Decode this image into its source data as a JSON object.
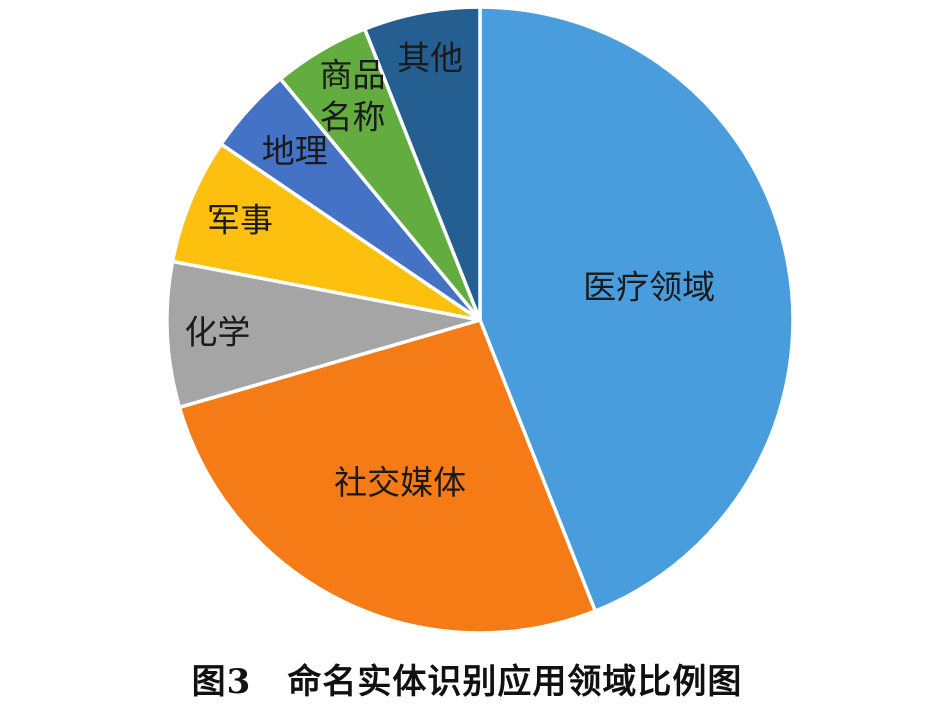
{
  "caption": {
    "figure_number": "图3",
    "title": "命名实体识别应用领域比例图"
  },
  "chart_data": {
    "type": "pie",
    "title": "",
    "start_angle_deg": 0,
    "direction": "clockwise",
    "slices": [
      {
        "label": "医疗领域",
        "value": 44,
        "color": "#4a9ddc"
      },
      {
        "label": "社交媒体",
        "value": 26.5,
        "color": "#f47b16"
      },
      {
        "label": "化学",
        "value": 7.5,
        "color": "#a5a5a5"
      },
      {
        "label": "军事",
        "value": 6.5,
        "color": "#fec00f"
      },
      {
        "label": "地理",
        "value": 4.5,
        "color": "#4472c4"
      },
      {
        "label": "商品名称",
        "value": 5,
        "color": "#63ad40"
      },
      {
        "label": "其他",
        "value": 6,
        "color": "#255f91"
      }
    ]
  }
}
